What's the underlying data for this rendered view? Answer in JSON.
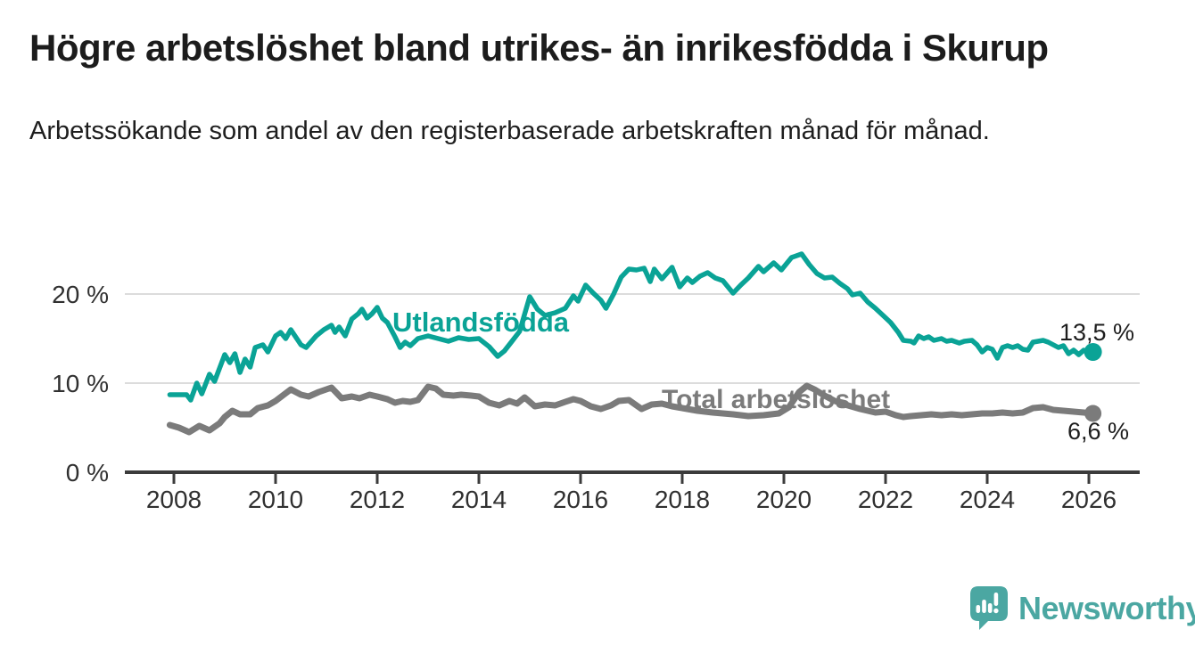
{
  "header": {
    "title": "Högre arbetslöshet bland utrikes- än inrikesfödda i Skurup",
    "subtitle": "Arbetssökande som andel av den registerbaserade arbetskraften månad för månad."
  },
  "colors": {
    "accent_teal": "#0aa396",
    "series_gray": "#7b7b7b",
    "grid": "#dcdcdc",
    "axis": "#3b3b3b",
    "axis_text": "#303030",
    "value_text": "#1d1d1d",
    "logo_teal": "#4ba7a2",
    "background": "#ffffff"
  },
  "chart_data": {
    "type": "line",
    "title": "Högre arbetslöshet bland utrikes- än inrikesfödda i Skurup",
    "subtitle": "Arbetssökande som andel av den registerbaserade arbetskraften månad för månad.",
    "unit": "%",
    "x_unit": "decimal_year",
    "xlim": [
      2007.0,
      2027.0
    ],
    "ylim": [
      0,
      26
    ],
    "grid": "horizontal-only",
    "legend_position": "inline-labels-on-lines",
    "x_ticks": [
      2008,
      2010,
      2012,
      2014,
      2016,
      2018,
      2020,
      2022,
      2024,
      2026
    ],
    "y_ticks": [
      {
        "v": 20,
        "label": "20 %"
      },
      {
        "v": 10,
        "label": "10 %"
      },
      {
        "v": 0,
        "label": "0 %"
      }
    ],
    "series": [
      {
        "id": "utlandsfodda",
        "name": "Utlandsfödda",
        "color": "#0aa396",
        "end_label": "13,5 %",
        "end_value": 13.5,
        "points": [
          [
            2007.92,
            8.7
          ],
          [
            2008.25,
            8.7
          ],
          [
            2008.33,
            8.1
          ],
          [
            2008.45,
            10.0
          ],
          [
            2008.55,
            8.8
          ],
          [
            2008.7,
            11.0
          ],
          [
            2008.8,
            10.2
          ],
          [
            2009.0,
            13.2
          ],
          [
            2009.1,
            12.3
          ],
          [
            2009.2,
            13.3
          ],
          [
            2009.3,
            11.2
          ],
          [
            2009.4,
            12.7
          ],
          [
            2009.5,
            11.8
          ],
          [
            2009.6,
            14.0
          ],
          [
            2009.75,
            14.3
          ],
          [
            2009.85,
            13.5
          ],
          [
            2010.0,
            15.3
          ],
          [
            2010.1,
            15.7
          ],
          [
            2010.2,
            15.0
          ],
          [
            2010.3,
            16.0
          ],
          [
            2010.5,
            14.3
          ],
          [
            2010.6,
            14.0
          ],
          [
            2010.8,
            15.3
          ],
          [
            2010.95,
            16.0
          ],
          [
            2011.1,
            16.5
          ],
          [
            2011.17,
            15.7
          ],
          [
            2011.25,
            16.3
          ],
          [
            2011.37,
            15.3
          ],
          [
            2011.5,
            17.2
          ],
          [
            2011.63,
            17.8
          ],
          [
            2011.7,
            18.3
          ],
          [
            2011.8,
            17.3
          ],
          [
            2011.9,
            17.8
          ],
          [
            2012.0,
            18.5
          ],
          [
            2012.1,
            17.3
          ],
          [
            2012.2,
            16.8
          ],
          [
            2012.35,
            15.2
          ],
          [
            2012.45,
            14.0
          ],
          [
            2012.55,
            14.6
          ],
          [
            2012.65,
            14.2
          ],
          [
            2012.8,
            15.0
          ],
          [
            2013.0,
            15.3
          ],
          [
            2013.2,
            15.0
          ],
          [
            2013.4,
            14.7
          ],
          [
            2013.6,
            15.1
          ],
          [
            2013.8,
            14.9
          ],
          [
            2014.0,
            15.0
          ],
          [
            2014.2,
            14.1
          ],
          [
            2014.37,
            13.0
          ],
          [
            2014.5,
            13.6
          ],
          [
            2014.65,
            14.7
          ],
          [
            2014.8,
            15.8
          ],
          [
            2015.0,
            19.7
          ],
          [
            2015.15,
            18.3
          ],
          [
            2015.3,
            17.6
          ],
          [
            2015.5,
            17.9
          ],
          [
            2015.7,
            18.4
          ],
          [
            2015.86,
            19.8
          ],
          [
            2015.95,
            19.2
          ],
          [
            2016.1,
            21.0
          ],
          [
            2016.25,
            20.1
          ],
          [
            2016.4,
            19.3
          ],
          [
            2016.5,
            18.4
          ],
          [
            2016.65,
            20.0
          ],
          [
            2016.8,
            21.9
          ],
          [
            2016.95,
            22.8
          ],
          [
            2017.1,
            22.7
          ],
          [
            2017.25,
            22.9
          ],
          [
            2017.37,
            21.4
          ],
          [
            2017.45,
            22.8
          ],
          [
            2017.6,
            21.7
          ],
          [
            2017.8,
            23.0
          ],
          [
            2017.95,
            20.8
          ],
          [
            2018.1,
            21.8
          ],
          [
            2018.2,
            21.3
          ],
          [
            2018.35,
            22.0
          ],
          [
            2018.5,
            22.4
          ],
          [
            2018.65,
            21.8
          ],
          [
            2018.8,
            21.5
          ],
          [
            2019.0,
            20.1
          ],
          [
            2019.15,
            21.0
          ],
          [
            2019.3,
            21.8
          ],
          [
            2019.5,
            23.1
          ],
          [
            2019.6,
            22.5
          ],
          [
            2019.8,
            23.5
          ],
          [
            2019.95,
            22.7
          ],
          [
            2020.15,
            24.1
          ],
          [
            2020.35,
            24.5
          ],
          [
            2020.5,
            23.3
          ],
          [
            2020.65,
            22.3
          ],
          [
            2020.8,
            21.8
          ],
          [
            2020.95,
            21.9
          ],
          [
            2021.1,
            21.2
          ],
          [
            2021.25,
            20.6
          ],
          [
            2021.35,
            19.9
          ],
          [
            2021.5,
            20.1
          ],
          [
            2021.65,
            19.1
          ],
          [
            2021.8,
            18.4
          ],
          [
            2021.95,
            17.6
          ],
          [
            2022.1,
            16.8
          ],
          [
            2022.25,
            15.7
          ],
          [
            2022.35,
            14.8
          ],
          [
            2022.5,
            14.7
          ],
          [
            2022.56,
            14.5
          ],
          [
            2022.65,
            15.3
          ],
          [
            2022.75,
            15.0
          ],
          [
            2022.85,
            15.2
          ],
          [
            2022.95,
            14.8
          ],
          [
            2023.1,
            15.0
          ],
          [
            2023.2,
            14.7
          ],
          [
            2023.3,
            14.8
          ],
          [
            2023.45,
            14.5
          ],
          [
            2023.55,
            14.7
          ],
          [
            2023.7,
            14.8
          ],
          [
            2023.8,
            14.3
          ],
          [
            2023.9,
            13.5
          ],
          [
            2024.0,
            14.0
          ],
          [
            2024.1,
            13.8
          ],
          [
            2024.2,
            12.8
          ],
          [
            2024.3,
            14.0
          ],
          [
            2024.4,
            14.2
          ],
          [
            2024.5,
            14.0
          ],
          [
            2024.6,
            14.2
          ],
          [
            2024.7,
            13.8
          ],
          [
            2024.8,
            13.7
          ],
          [
            2024.9,
            14.6
          ],
          [
            2025.0,
            14.7
          ],
          [
            2025.1,
            14.8
          ],
          [
            2025.2,
            14.6
          ],
          [
            2025.3,
            14.3
          ],
          [
            2025.4,
            14.0
          ],
          [
            2025.5,
            14.2
          ],
          [
            2025.6,
            13.3
          ],
          [
            2025.7,
            13.7
          ],
          [
            2025.8,
            13.2
          ],
          [
            2025.9,
            13.7
          ],
          [
            2026.0,
            13.4
          ],
          [
            2026.08,
            13.5
          ]
        ]
      },
      {
        "id": "total-arbetsloshet",
        "name": "Total arbetslöshet",
        "color": "#7b7b7b",
        "end_label": "6,6 %",
        "end_value": 6.6,
        "points": [
          [
            2007.92,
            5.3
          ],
          [
            2008.1,
            5.0
          ],
          [
            2008.3,
            4.5
          ],
          [
            2008.5,
            5.2
          ],
          [
            2008.7,
            4.7
          ],
          [
            2008.9,
            5.5
          ],
          [
            2009.0,
            6.2
          ],
          [
            2009.15,
            6.9
          ],
          [
            2009.3,
            6.5
          ],
          [
            2009.5,
            6.5
          ],
          [
            2009.65,
            7.2
          ],
          [
            2009.85,
            7.5
          ],
          [
            2010.0,
            8.0
          ],
          [
            2010.3,
            9.3
          ],
          [
            2010.5,
            8.7
          ],
          [
            2010.65,
            8.5
          ],
          [
            2010.85,
            9.0
          ],
          [
            2011.1,
            9.5
          ],
          [
            2011.3,
            8.3
          ],
          [
            2011.5,
            8.5
          ],
          [
            2011.65,
            8.3
          ],
          [
            2011.85,
            8.7
          ],
          [
            2012.0,
            8.5
          ],
          [
            2012.2,
            8.2
          ],
          [
            2012.35,
            7.8
          ],
          [
            2012.5,
            8.0
          ],
          [
            2012.65,
            7.9
          ],
          [
            2012.8,
            8.1
          ],
          [
            2013.0,
            9.6
          ],
          [
            2013.15,
            9.4
          ],
          [
            2013.3,
            8.7
          ],
          [
            2013.5,
            8.6
          ],
          [
            2013.65,
            8.7
          ],
          [
            2013.85,
            8.6
          ],
          [
            2014.0,
            8.5
          ],
          [
            2014.2,
            7.8
          ],
          [
            2014.4,
            7.5
          ],
          [
            2014.6,
            8.0
          ],
          [
            2014.75,
            7.7
          ],
          [
            2014.9,
            8.4
          ],
          [
            2015.1,
            7.4
          ],
          [
            2015.3,
            7.6
          ],
          [
            2015.5,
            7.5
          ],
          [
            2015.7,
            7.9
          ],
          [
            2015.86,
            8.2
          ],
          [
            2016.0,
            8.0
          ],
          [
            2016.2,
            7.4
          ],
          [
            2016.4,
            7.1
          ],
          [
            2016.6,
            7.5
          ],
          [
            2016.75,
            8.0
          ],
          [
            2016.95,
            8.1
          ],
          [
            2017.2,
            7.1
          ],
          [
            2017.4,
            7.6
          ],
          [
            2017.6,
            7.7
          ],
          [
            2017.8,
            7.4
          ],
          [
            2018.0,
            7.2
          ],
          [
            2018.3,
            6.9
          ],
          [
            2018.6,
            6.7
          ],
          [
            2019.0,
            6.5
          ],
          [
            2019.3,
            6.3
          ],
          [
            2019.6,
            6.4
          ],
          [
            2019.9,
            6.6
          ],
          [
            2020.1,
            7.3
          ],
          [
            2020.3,
            9.0
          ],
          [
            2020.45,
            9.7
          ],
          [
            2020.6,
            9.3
          ],
          [
            2020.8,
            8.6
          ],
          [
            2021.0,
            8.0
          ],
          [
            2021.2,
            7.6
          ],
          [
            2021.5,
            7.1
          ],
          [
            2021.8,
            6.7
          ],
          [
            2022.0,
            6.8
          ],
          [
            2022.2,
            6.4
          ],
          [
            2022.35,
            6.2
          ],
          [
            2022.5,
            6.3
          ],
          [
            2022.7,
            6.4
          ],
          [
            2022.9,
            6.5
          ],
          [
            2023.1,
            6.4
          ],
          [
            2023.3,
            6.5
          ],
          [
            2023.5,
            6.4
          ],
          [
            2023.7,
            6.5
          ],
          [
            2023.9,
            6.6
          ],
          [
            2024.1,
            6.6
          ],
          [
            2024.3,
            6.7
          ],
          [
            2024.5,
            6.6
          ],
          [
            2024.7,
            6.7
          ],
          [
            2024.9,
            7.2
          ],
          [
            2025.1,
            7.3
          ],
          [
            2025.3,
            7.0
          ],
          [
            2025.5,
            6.9
          ],
          [
            2025.7,
            6.8
          ],
          [
            2025.9,
            6.7
          ],
          [
            2026.08,
            6.6
          ]
        ]
      }
    ]
  },
  "footer": {
    "brand": "Newsworthy"
  }
}
